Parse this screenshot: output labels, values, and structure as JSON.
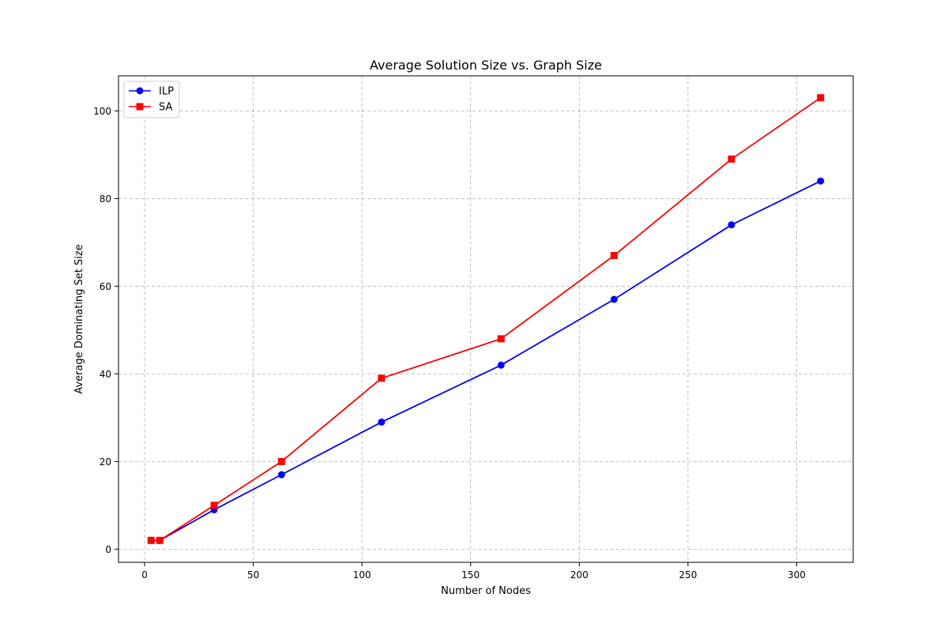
{
  "chart_data": {
    "type": "line",
    "title": "Average Solution Size vs. Graph Size",
    "xlabel": "Number of Nodes",
    "ylabel": "Average Dominating Set Size",
    "xlim": [
      -12,
      326
    ],
    "ylim": [
      -3,
      108
    ],
    "xticks": [
      0,
      50,
      100,
      150,
      200,
      250,
      300
    ],
    "yticks": [
      0,
      20,
      40,
      60,
      80,
      100
    ],
    "grid": true,
    "legend_position": "top-left",
    "series": [
      {
        "name": "ILP",
        "color": "#0000ff",
        "marker": "circle",
        "x": [
          3,
          7,
          32,
          63,
          109,
          164,
          216,
          270,
          311
        ],
        "y": [
          2,
          2,
          9,
          17,
          29,
          42,
          57,
          74,
          84
        ]
      },
      {
        "name": "SA",
        "color": "#ff0000",
        "marker": "square",
        "x": [
          3,
          7,
          32,
          63,
          109,
          164,
          216,
          270,
          311
        ],
        "y": [
          2,
          2,
          10,
          20,
          39,
          48,
          67,
          89,
          103
        ]
      }
    ]
  }
}
